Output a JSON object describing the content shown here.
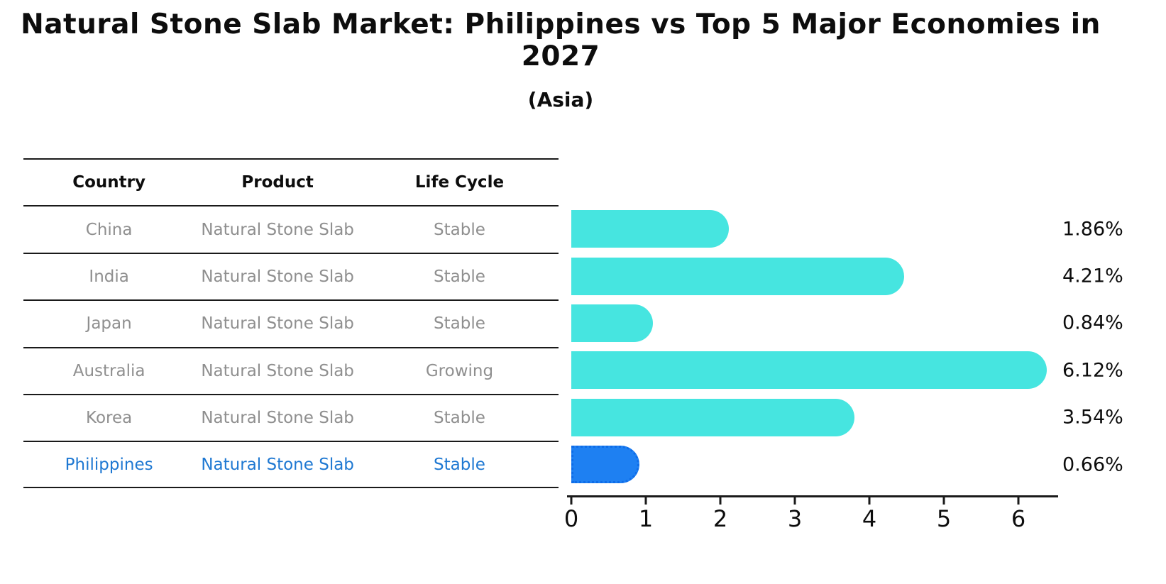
{
  "header": {
    "title": "Natural Stone Slab Market: Philippines vs Top 5 Major Economies in 2027",
    "subtitle": "(Asia)"
  },
  "table": {
    "headers": [
      "Country",
      "Product",
      "Life Cycle"
    ],
    "rows": [
      {
        "country": "China",
        "product": "Natural Stone Slab",
        "life_cycle": "Stable",
        "highlight": false
      },
      {
        "country": "India",
        "product": "Natural Stone Slab",
        "life_cycle": "Stable",
        "highlight": false
      },
      {
        "country": "Japan",
        "product": "Natural Stone Slab",
        "life_cycle": "Stable",
        "highlight": false
      },
      {
        "country": "Australia",
        "product": "Natural Stone Slab",
        "life_cycle": "Growing",
        "highlight": false
      },
      {
        "country": "Korea",
        "product": "Natural Stone Slab",
        "life_cycle": "Stable",
        "highlight": false
      },
      {
        "country": "Philippines",
        "product": "Natural Stone Slab",
        "life_cycle": "Stable",
        "highlight": true
      }
    ]
  },
  "chart_data": {
    "type": "bar",
    "orientation": "horizontal",
    "title": "Natural Stone Slab Market: Philippines vs Top 5 Major Economies in 2027 (Asia)",
    "categories": [
      "China",
      "India",
      "Japan",
      "Australia",
      "Korea",
      "Philippines"
    ],
    "values": [
      1.86,
      4.21,
      0.84,
      6.12,
      3.54,
      0.66
    ],
    "value_labels": [
      "1.86%",
      "4.21%",
      "0.84%",
      "6.12%",
      "3.54%",
      "0.66%"
    ],
    "xlabel": "",
    "ylabel": "",
    "xlim": [
      0,
      6.5
    ],
    "xticks": [
      "0",
      "1",
      "2",
      "3",
      "4",
      "5",
      "6"
    ],
    "grid": false,
    "legend": "none",
    "bar_color": "#46E5E0",
    "highlight_color": "#1E80F2",
    "highlight_index": 5,
    "value_label_position": "right"
  },
  "colors": {
    "background": "#ffffff",
    "rule": "#1a1a1a",
    "table_text": "#8f8f8f",
    "table_highlight_text": "#1e78d2",
    "axis": "#1a1a1a"
  }
}
